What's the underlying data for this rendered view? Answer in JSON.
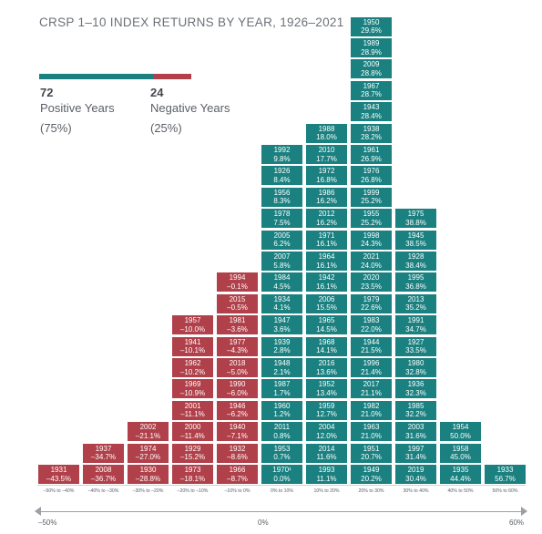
{
  "title": "CRSP 1–10 INDEX RETURNS BY YEAR, 1926–2021",
  "colors": {
    "positive": "#1a8080",
    "negative": "#b0404a"
  },
  "summary": {
    "positive_count": "72",
    "positive_label": "Positive Years",
    "positive_pct": "(75%)",
    "negative_count": "24",
    "negative_label": "Negative Years",
    "negative_pct": "(25%)",
    "positive_share": 0.75,
    "negative_share": 0.25
  },
  "scale": {
    "left": "–50%",
    "middle": "0%",
    "right": "60%"
  },
  "chart_data": {
    "type": "bar",
    "title": "CRSP 1–10 INDEX RETURNS BY YEAR, 1926–2021",
    "xlabel": "",
    "ylabel": "",
    "bins": [
      {
        "label": "–50% to –40%",
        "sign": "negative",
        "years": [
          {
            "year": "1931",
            "ret": "–43.5%"
          }
        ]
      },
      {
        "label": "–40% to –30%",
        "sign": "negative",
        "years": [
          {
            "year": "2008",
            "ret": "–36.7%"
          },
          {
            "year": "1937",
            "ret": "–34.7%"
          }
        ]
      },
      {
        "label": "–30% to –20%",
        "sign": "negative",
        "years": [
          {
            "year": "1930",
            "ret": "–28.8%"
          },
          {
            "year": "1974",
            "ret": "–27.0%"
          },
          {
            "year": "2002",
            "ret": "–21.1%"
          }
        ]
      },
      {
        "label": "–20% to –10%",
        "sign": "negative",
        "years": [
          {
            "year": "1973",
            "ret": "–18.1%"
          },
          {
            "year": "1929",
            "ret": "–15.2%"
          },
          {
            "year": "2000",
            "ret": "–11.4%"
          },
          {
            "year": "2001",
            "ret": "–11.1%"
          },
          {
            "year": "1969",
            "ret": "–10.9%"
          },
          {
            "year": "1962",
            "ret": "–10.2%"
          },
          {
            "year": "1941",
            "ret": "–10.1%"
          },
          {
            "year": "1957",
            "ret": "–10.0%"
          }
        ]
      },
      {
        "label": "–10% to 0%",
        "sign": "negative",
        "years": [
          {
            "year": "1966",
            "ret": "–8.7%"
          },
          {
            "year": "1932",
            "ret": "–8.6%"
          },
          {
            "year": "1940",
            "ret": "–7.1%"
          },
          {
            "year": "1946",
            "ret": "–6.2%"
          },
          {
            "year": "1990",
            "ret": "–6.0%"
          },
          {
            "year": "2018",
            "ret": "–5.0%"
          },
          {
            "year": "1977",
            "ret": "–4.3%"
          },
          {
            "year": "1981",
            "ret": "–3.6%"
          },
          {
            "year": "2015",
            "ret": "–0.5%"
          },
          {
            "year": "1994",
            "ret": "–0.1%"
          }
        ]
      },
      {
        "label": "0% to 10%",
        "sign": "positive",
        "years": [
          {
            "year": "1970¹",
            "ret": "0.0%"
          },
          {
            "year": "1953",
            "ret": "0.7%"
          },
          {
            "year": "2011",
            "ret": "0.8%"
          },
          {
            "year": "1960",
            "ret": "1.2%"
          },
          {
            "year": "1987",
            "ret": "1.7%"
          },
          {
            "year": "1948",
            "ret": "2.1%"
          },
          {
            "year": "1939",
            "ret": "2.8%"
          },
          {
            "year": "1947",
            "ret": "3.6%"
          },
          {
            "year": "1934",
            "ret": "4.1%"
          },
          {
            "year": "1984",
            "ret": "4.5%"
          },
          {
            "year": "2007",
            "ret": "5.8%"
          },
          {
            "year": "2005",
            "ret": "6.2%"
          },
          {
            "year": "1978",
            "ret": "7.5%"
          },
          {
            "year": "1956",
            "ret": "8.3%"
          },
          {
            "year": "1926",
            "ret": "8.4%"
          },
          {
            "year": "1992",
            "ret": "9.8%"
          }
        ]
      },
      {
        "label": "10% to 20%",
        "sign": "positive",
        "years": [
          {
            "year": "1993",
            "ret": "11.1%"
          },
          {
            "year": "2014",
            "ret": "11.6%"
          },
          {
            "year": "2004",
            "ret": "12.0%"
          },
          {
            "year": "1959",
            "ret": "12.7%"
          },
          {
            "year": "1952",
            "ret": "13.4%"
          },
          {
            "year": "2016",
            "ret": "13.6%"
          },
          {
            "year": "1968",
            "ret": "14.1%"
          },
          {
            "year": "1965",
            "ret": "14.5%"
          },
          {
            "year": "2006",
            "ret": "15.5%"
          },
          {
            "year": "1942",
            "ret": "16.1%"
          },
          {
            "year": "1964",
            "ret": "16.1%"
          },
          {
            "year": "1971",
            "ret": "16.1%"
          },
          {
            "year": "2012",
            "ret": "16.2%"
          },
          {
            "year": "1986",
            "ret": "16.2%"
          },
          {
            "year": "1972",
            "ret": "16.8%"
          },
          {
            "year": "2010",
            "ret": "17.7%"
          },
          {
            "year": "1988",
            "ret": "18.0%"
          }
        ]
      },
      {
        "label": "20% to 30%",
        "sign": "positive",
        "years": [
          {
            "year": "1949",
            "ret": "20.2%"
          },
          {
            "year": "1951",
            "ret": "20.7%"
          },
          {
            "year": "1963",
            "ret": "21.0%"
          },
          {
            "year": "1982",
            "ret": "21.0%"
          },
          {
            "year": "2017",
            "ret": "21.1%"
          },
          {
            "year": "1996",
            "ret": "21.4%"
          },
          {
            "year": "1944",
            "ret": "21.5%"
          },
          {
            "year": "1983",
            "ret": "22.0%"
          },
          {
            "year": "1979",
            "ret": "22.6%"
          },
          {
            "year": "2020",
            "ret": "23.5%"
          },
          {
            "year": "2021",
            "ret": "24.0%"
          },
          {
            "year": "1998",
            "ret": "24.3%"
          },
          {
            "year": "1955",
            "ret": "25.2%"
          },
          {
            "year": "1999",
            "ret": "25.2%"
          },
          {
            "year": "1976",
            "ret": "26.8%"
          },
          {
            "year": "1961",
            "ret": "26.9%"
          },
          {
            "year": "1938",
            "ret": "28.2%"
          },
          {
            "year": "1943",
            "ret": "28.4%"
          },
          {
            "year": "1967",
            "ret": "28.7%"
          },
          {
            "year": "2009",
            "ret": "28.8%"
          },
          {
            "year": "1989",
            "ret": "28.9%"
          },
          {
            "year": "1950",
            "ret": "29.6%"
          }
        ]
      },
      {
        "label": "30% to 40%",
        "sign": "positive",
        "years": [
          {
            "year": "2019",
            "ret": "30.4%"
          },
          {
            "year": "1997",
            "ret": "31.4%"
          },
          {
            "year": "2003",
            "ret": "31.6%"
          },
          {
            "year": "1985",
            "ret": "32.2%"
          },
          {
            "year": "1936",
            "ret": "32.3%"
          },
          {
            "year": "1980",
            "ret": "32.8%"
          },
          {
            "year": "1927",
            "ret": "33.5%"
          },
          {
            "year": "1991",
            "ret": "34.7%"
          },
          {
            "year": "2013",
            "ret": "35.2%"
          },
          {
            "year": "1995",
            "ret": "36.8%"
          },
          {
            "year": "1928",
            "ret": "38.4%"
          },
          {
            "year": "1945",
            "ret": "38.5%"
          },
          {
            "year": "1975",
            "ret": "38.8%"
          }
        ]
      },
      {
        "label": "40% to 50%",
        "sign": "positive",
        "years": [
          {
            "year": "1935",
            "ret": "44.4%"
          },
          {
            "year": "1958",
            "ret": "45.0%"
          },
          {
            "year": "1954",
            "ret": "50.0%"
          }
        ]
      },
      {
        "label": "50% to 60%",
        "sign": "positive",
        "years": [
          {
            "year": "1933",
            "ret": "56.7%"
          }
        ]
      }
    ]
  }
}
